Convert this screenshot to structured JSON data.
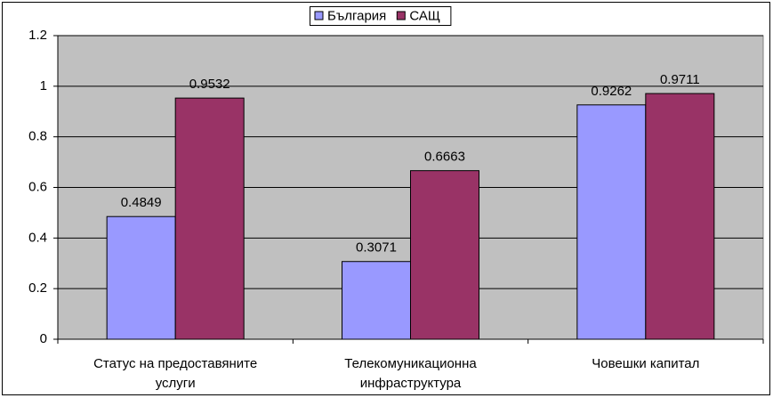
{
  "chart_data": {
    "type": "bar",
    "categories": [
      "Статус на предоставяните услуги",
      "Телекомуникационна инфраструктура",
      "Човешки капитал"
    ],
    "series": [
      {
        "name": "България",
        "color": "#9999ff",
        "values": [
          0.4849,
          0.3071,
          0.9262
        ]
      },
      {
        "name": "САЩ",
        "color": "#993366",
        "values": [
          0.9532,
          0.6663,
          0.9711
        ]
      }
    ],
    "ylim": [
      0,
      1.2
    ],
    "yticks": [
      0,
      0.2,
      0.4,
      0.6,
      0.8,
      1,
      1.2
    ],
    "grid": true,
    "legend": "top"
  }
}
